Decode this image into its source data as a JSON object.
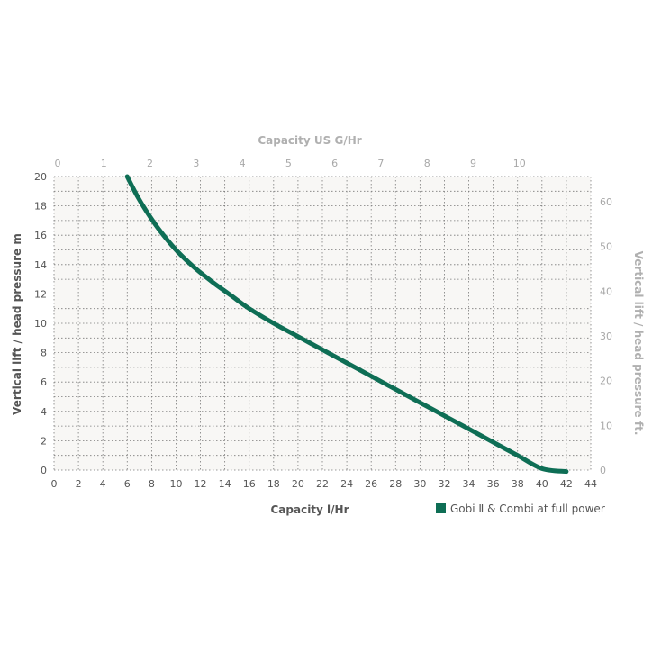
{
  "chart_data": {
    "type": "line",
    "xlabel": "Capacity l/Hr",
    "ylabel": "Vertical lift / head pressure m",
    "xlim": [
      0,
      44
    ],
    "ylim": [
      0,
      20
    ],
    "x_ticks": [
      "0",
      "2",
      "4",
      "6",
      "8",
      "10",
      "12",
      "14",
      "16",
      "18",
      "20",
      "22",
      "24",
      "26",
      "28",
      "30",
      "32",
      "34",
      "36",
      "38",
      "40",
      "42",
      "44"
    ],
    "y_ticks": [
      "0",
      "2",
      "4",
      "6",
      "8",
      "10",
      "12",
      "14",
      "16",
      "18",
      "20"
    ],
    "secondary_x": {
      "label": "Capacity US G/Hr",
      "ticks": [
        "0",
        "1",
        "2",
        "3",
        "4",
        "5",
        "6",
        "7",
        "8",
        "9",
        "10"
      ]
    },
    "secondary_y": {
      "label": "Vertical lift / head pressure ft.",
      "ticks": [
        "0",
        "10",
        "20",
        "30",
        "40",
        "50",
        "60"
      ]
    },
    "series": [
      {
        "name": "Gobi Ⅱ & Combi at full power",
        "color": "#0e6e55",
        "x": [
          6.0,
          6.8,
          7.6,
          8.6,
          10.0,
          11.5,
          13.0,
          14.5,
          16.0,
          18.0,
          20.0,
          22.0,
          24.0,
          26.0,
          28.0,
          30.0,
          32.0,
          34.0,
          36.0,
          38.0,
          40.0,
          42.0
        ],
        "y": [
          20.0,
          18.7,
          17.6,
          16.4,
          15.0,
          13.8,
          12.8,
          11.9,
          11.0,
          10.0,
          9.1,
          8.2,
          7.3,
          6.4,
          5.5,
          4.6,
          3.7,
          2.8,
          1.9,
          1.0,
          0.1,
          -0.1
        ]
      }
    ],
    "grid": true,
    "legend": "bottom-right"
  },
  "colors": {
    "plot_background": "#f8f7f5",
    "series": "#0e6e55"
  }
}
